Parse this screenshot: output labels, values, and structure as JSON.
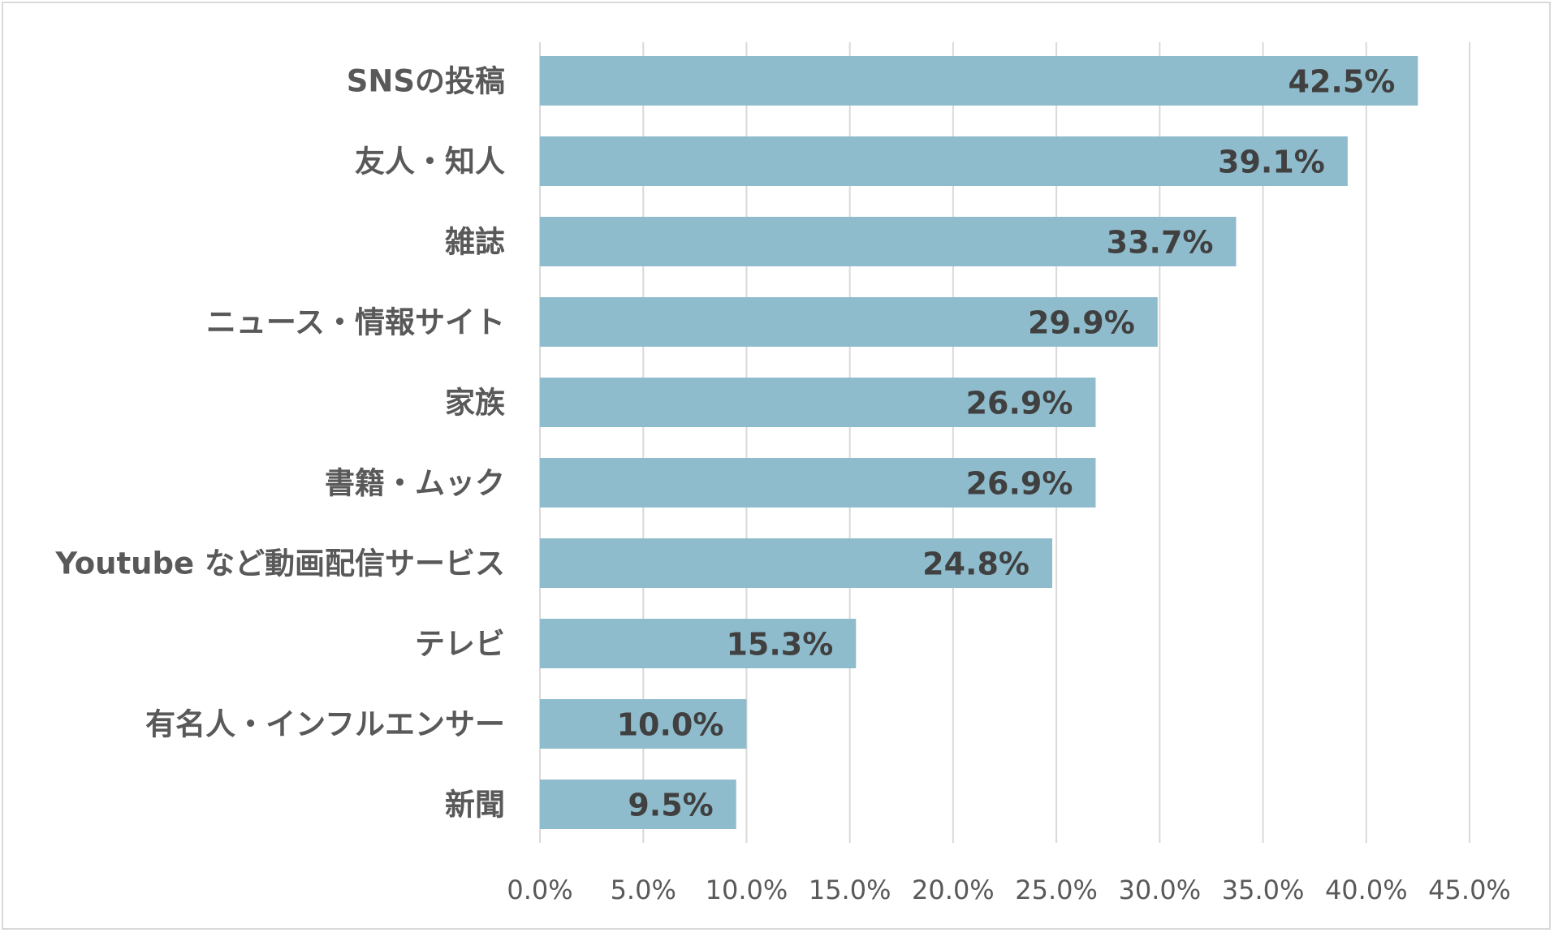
{
  "chart_data": {
    "type": "bar",
    "orientation": "horizontal",
    "title": "",
    "xlabel": "",
    "ylabel": "",
    "categories": [
      "SNSの投稿",
      "友人・知人",
      "雑誌",
      "ニュース・情報サイト",
      "家族",
      "書籍・ムック",
      "Youtube など動画配信サービス",
      "テレビ",
      "有名人・インフルエンサー",
      "新聞"
    ],
    "values": [
      42.5,
      39.1,
      33.7,
      29.9,
      26.9,
      26.9,
      24.8,
      15.3,
      10.0,
      9.5
    ],
    "value_labels": [
      "42.5%",
      "39.1%",
      "33.7%",
      "29.9%",
      "26.9%",
      "26.9%",
      "24.8%",
      "15.3%",
      "10.0%",
      "9.5%"
    ],
    "xlim": [
      0,
      45
    ],
    "x_ticks": [
      0,
      5,
      10,
      15,
      20,
      25,
      30,
      35,
      40,
      45
    ],
    "x_tick_labels": [
      "0.0%",
      "5.0%",
      "10.0%",
      "15.0%",
      "20.0%",
      "25.0%",
      "30.0%",
      "35.0%",
      "40.0%",
      "45.0%"
    ],
    "grid": true,
    "legend": "none",
    "bar_color": "#8fbccc"
  }
}
